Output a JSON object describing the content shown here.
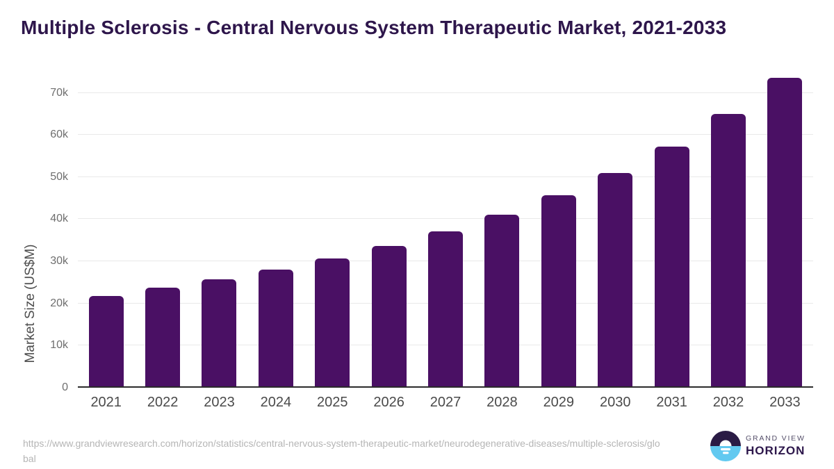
{
  "header": {
    "title": "Multiple Sclerosis - Central Nervous System Therapeutic Market, 2021-2033"
  },
  "chart_data": {
    "type": "bar",
    "title": "Multiple Sclerosis - Central Nervous System Therapeutic Market, 2021-2033",
    "categories": [
      "2021",
      "2022",
      "2023",
      "2024",
      "2025",
      "2026",
      "2027",
      "2028",
      "2029",
      "2030",
      "2031",
      "2032",
      "2033"
    ],
    "values": [
      21800,
      23800,
      25700,
      28100,
      30700,
      33700,
      37100,
      41100,
      45700,
      51000,
      57300,
      64900,
      73600
    ],
    "xlabel": "",
    "ylabel": "Market Size (US$M)",
    "ylim": [
      0,
      74700
    ],
    "yticks": [
      {
        "value": 0,
        "label": "0"
      },
      {
        "value": 10000,
        "label": "10k"
      },
      {
        "value": 20000,
        "label": "20k"
      },
      {
        "value": 30000,
        "label": "30k"
      },
      {
        "value": 40000,
        "label": "40k"
      },
      {
        "value": 50000,
        "label": "50k"
      },
      {
        "value": 60000,
        "label": "60k"
      },
      {
        "value": 70000,
        "label": "70k"
      }
    ],
    "grid": true,
    "legend": "none"
  },
  "footer": {
    "source_url": "https://www.grandviewresearch.com/horizon/statistics/central-nervous-system-therapeutic-market/neurodegenerative-diseases/multiple-sclerosis/global",
    "logo": {
      "brand_top": "GRAND VIEW",
      "brand_bottom": "HORIZON"
    }
  },
  "colors": {
    "title": "#2e164b",
    "bar": "#4a1064",
    "gridline": "#e9e9e9",
    "axis_line": "#2b2b2b",
    "tick_label": "#6e6e6e",
    "x_label": "#4a4a4a",
    "axis_title": "#4d4d4d",
    "url_text": "#b5b5b5",
    "logo_dark": "#2a1b45",
    "logo_blue": "#62c9f0",
    "brand_top": "#544e69",
    "brand_bottom": "#2d174b"
  }
}
